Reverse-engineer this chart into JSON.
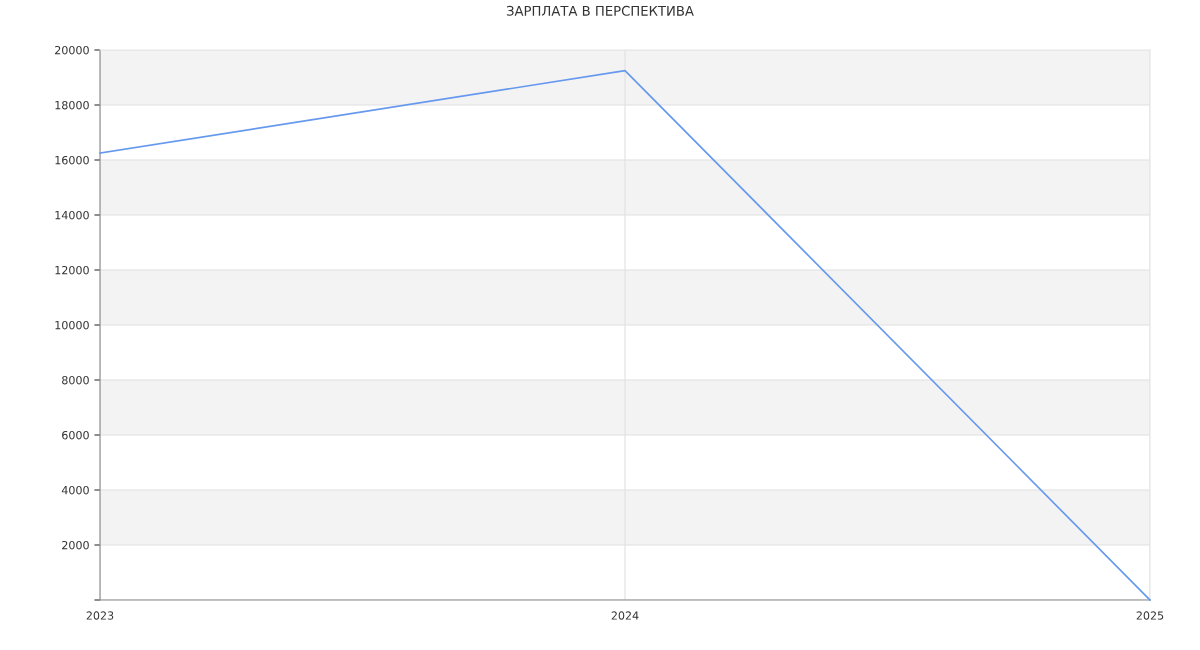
{
  "chart_data": {
    "type": "line",
    "title": "ЗАРПЛАТА В ПЕРСПЕКТИВА",
    "x": [
      2023,
      2024,
      2025
    ],
    "series": [
      {
        "color": "#6699ee",
        "values": [
          16250,
          19250,
          0
        ]
      }
    ],
    "xlim": [
      2023,
      2025
    ],
    "xticks": [
      2023,
      2024,
      2025
    ],
    "ylim": [
      0,
      20000
    ],
    "yticks": [
      {
        "value": 0,
        "label": null
      },
      2000,
      4000,
      6000,
      8000,
      10000,
      12000,
      14000,
      16000,
      18000,
      20000
    ],
    "grid": true,
    "marker": "none",
    "line_style": "solid"
  }
}
